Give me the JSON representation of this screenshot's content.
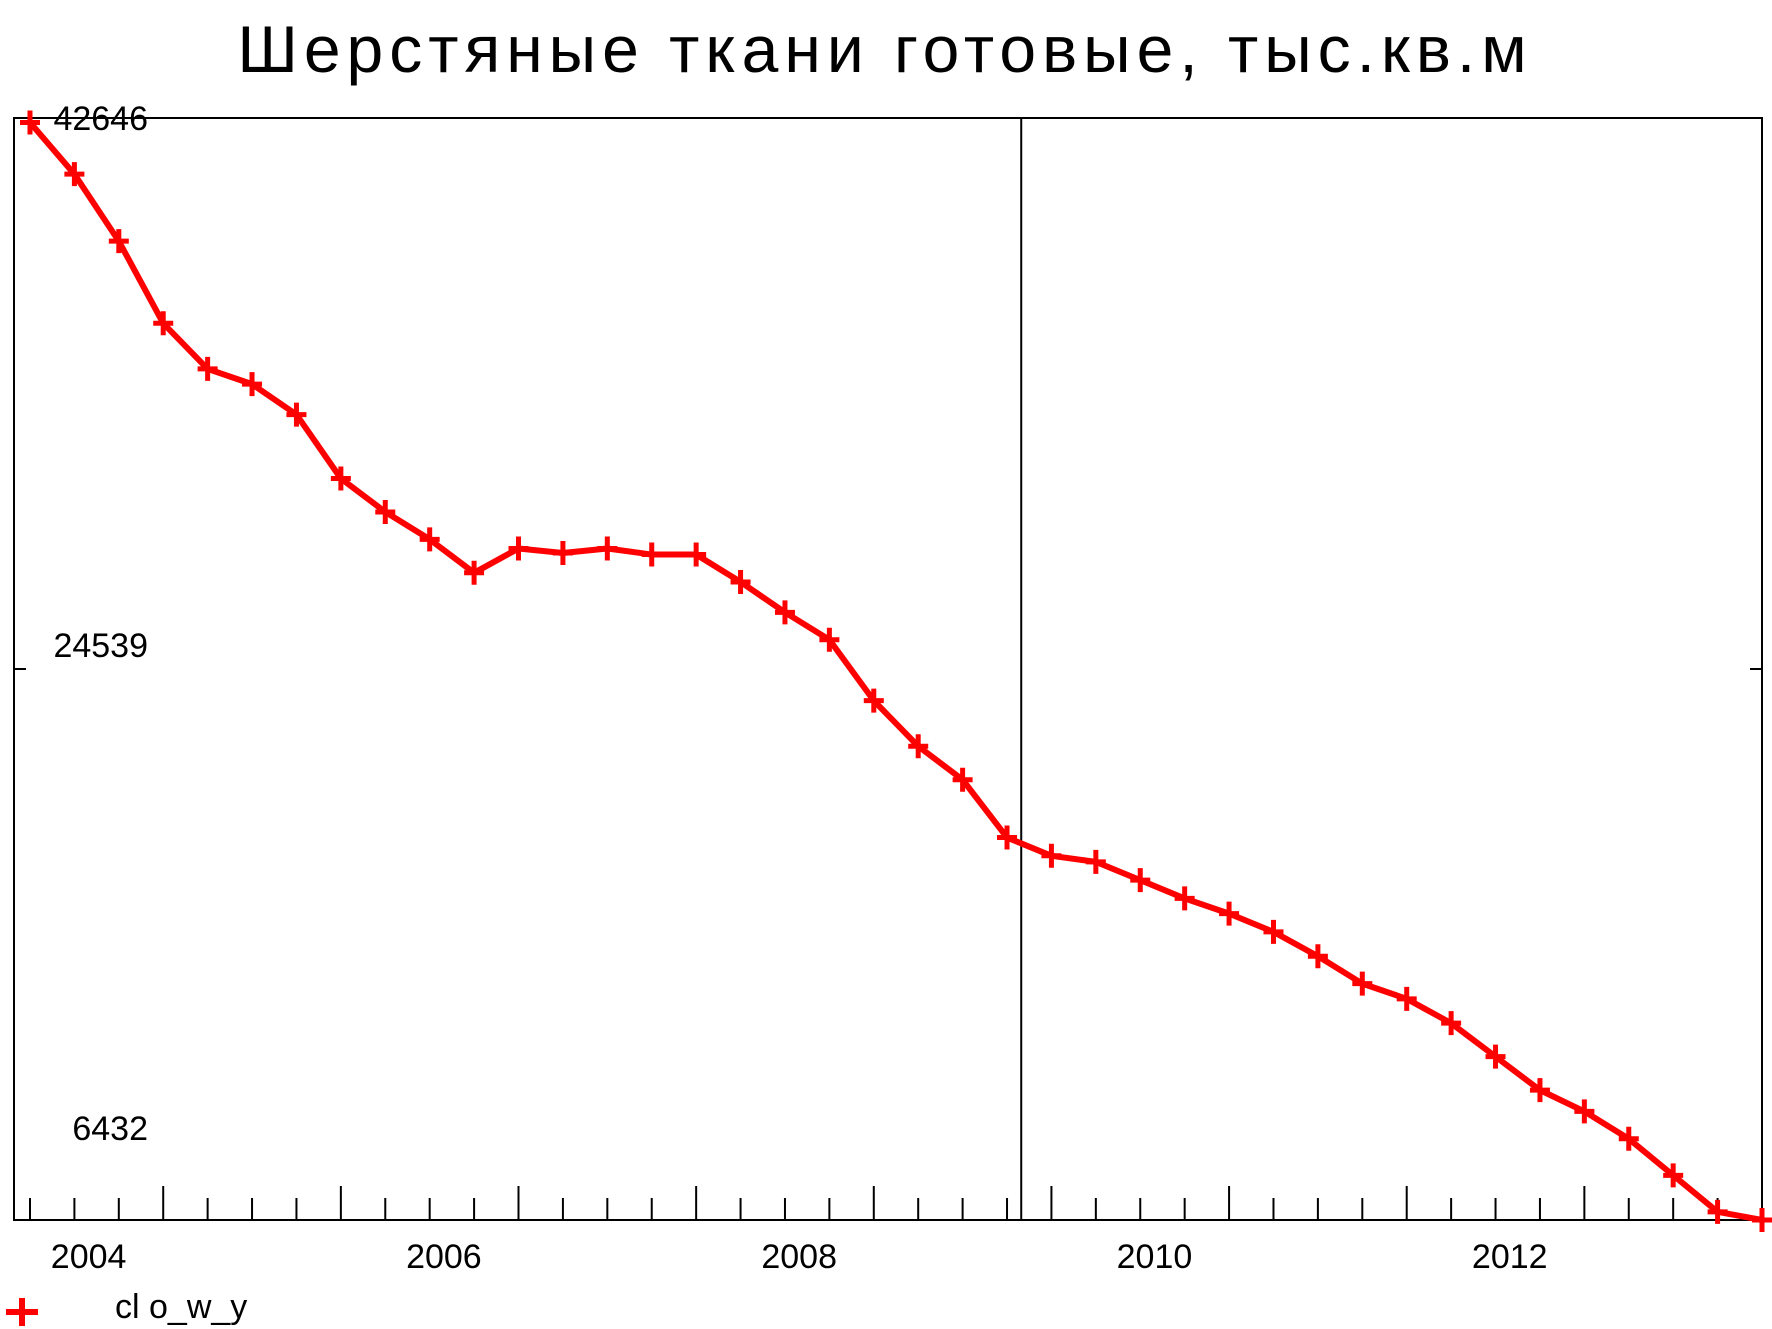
{
  "chart_data": {
    "type": "line",
    "title": "Шерстяные ткани готовые, тыс.кв.м",
    "xlabel": "",
    "ylabel": "",
    "x_ticks": [
      "2004",
      "2006",
      "2008",
      "2010",
      "2012"
    ],
    "y_ticks": [
      "42646",
      "24539",
      "6432"
    ],
    "ylim": [
      6432,
      42646
    ],
    "xlim": [
      2003.58,
      2013.42
    ],
    "grid": false,
    "marker": "plus",
    "colors": {
      "series": "#ff0000",
      "axis": "#000000"
    },
    "legend": {
      "position": "bottom-left",
      "label": "cl o_w_y"
    },
    "series": [
      {
        "name": "cl o_w_y",
        "x": [
          2003.67,
          2003.92,
          2004.17,
          2004.42,
          2004.67,
          2004.92,
          2005.17,
          2005.42,
          2005.67,
          2005.92,
          2006.17,
          2006.42,
          2006.67,
          2006.92,
          2007.17,
          2007.42,
          2007.67,
          2007.92,
          2008.17,
          2008.42,
          2008.67,
          2008.92,
          2009.17,
          2009.42,
          2009.67,
          2009.92,
          2010.17,
          2010.42,
          2010.67,
          2010.92,
          2011.17,
          2011.42,
          2011.67,
          2011.92,
          2012.17,
          2012.42,
          2012.67,
          2012.92,
          2013.17,
          2013.42
        ],
        "values": [
          42500,
          40800,
          38600,
          35900,
          34400,
          33900,
          32900,
          30800,
          29700,
          28800,
          27700,
          28500,
          28350,
          28500,
          28300,
          28300,
          27400,
          26400,
          25500,
          23500,
          22000,
          20900,
          19000,
          18400,
          18200,
          17600,
          17000,
          16500,
          15900,
          15100,
          14200,
          13700,
          12900,
          11800,
          10700,
          10000,
          9100,
          7900,
          6700,
          6432
        ]
      }
    ]
  }
}
